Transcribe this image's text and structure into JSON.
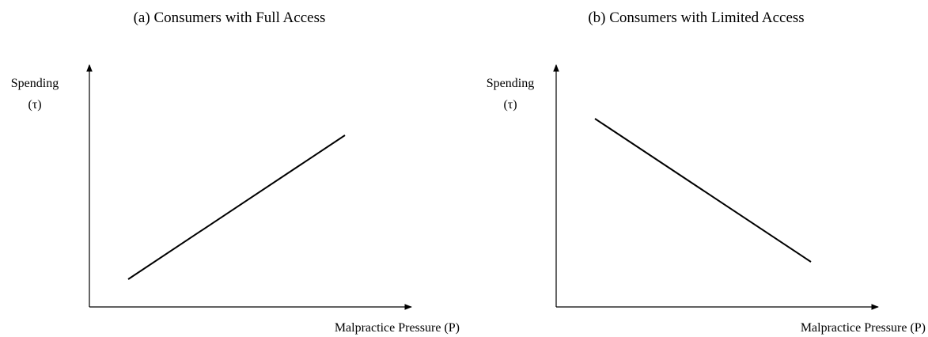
{
  "panels": [
    {
      "title": "(a) Consumers with Full Access",
      "y_label": [
        "Spending",
        "(τ)"
      ],
      "x_label": "Malpractice Pressure (P)"
    },
    {
      "title": "(b) Consumers with Limited Access",
      "y_label": [
        "Spending",
        "(τ)"
      ],
      "x_label": "Malpractice Pressure (P)"
    }
  ]
}
